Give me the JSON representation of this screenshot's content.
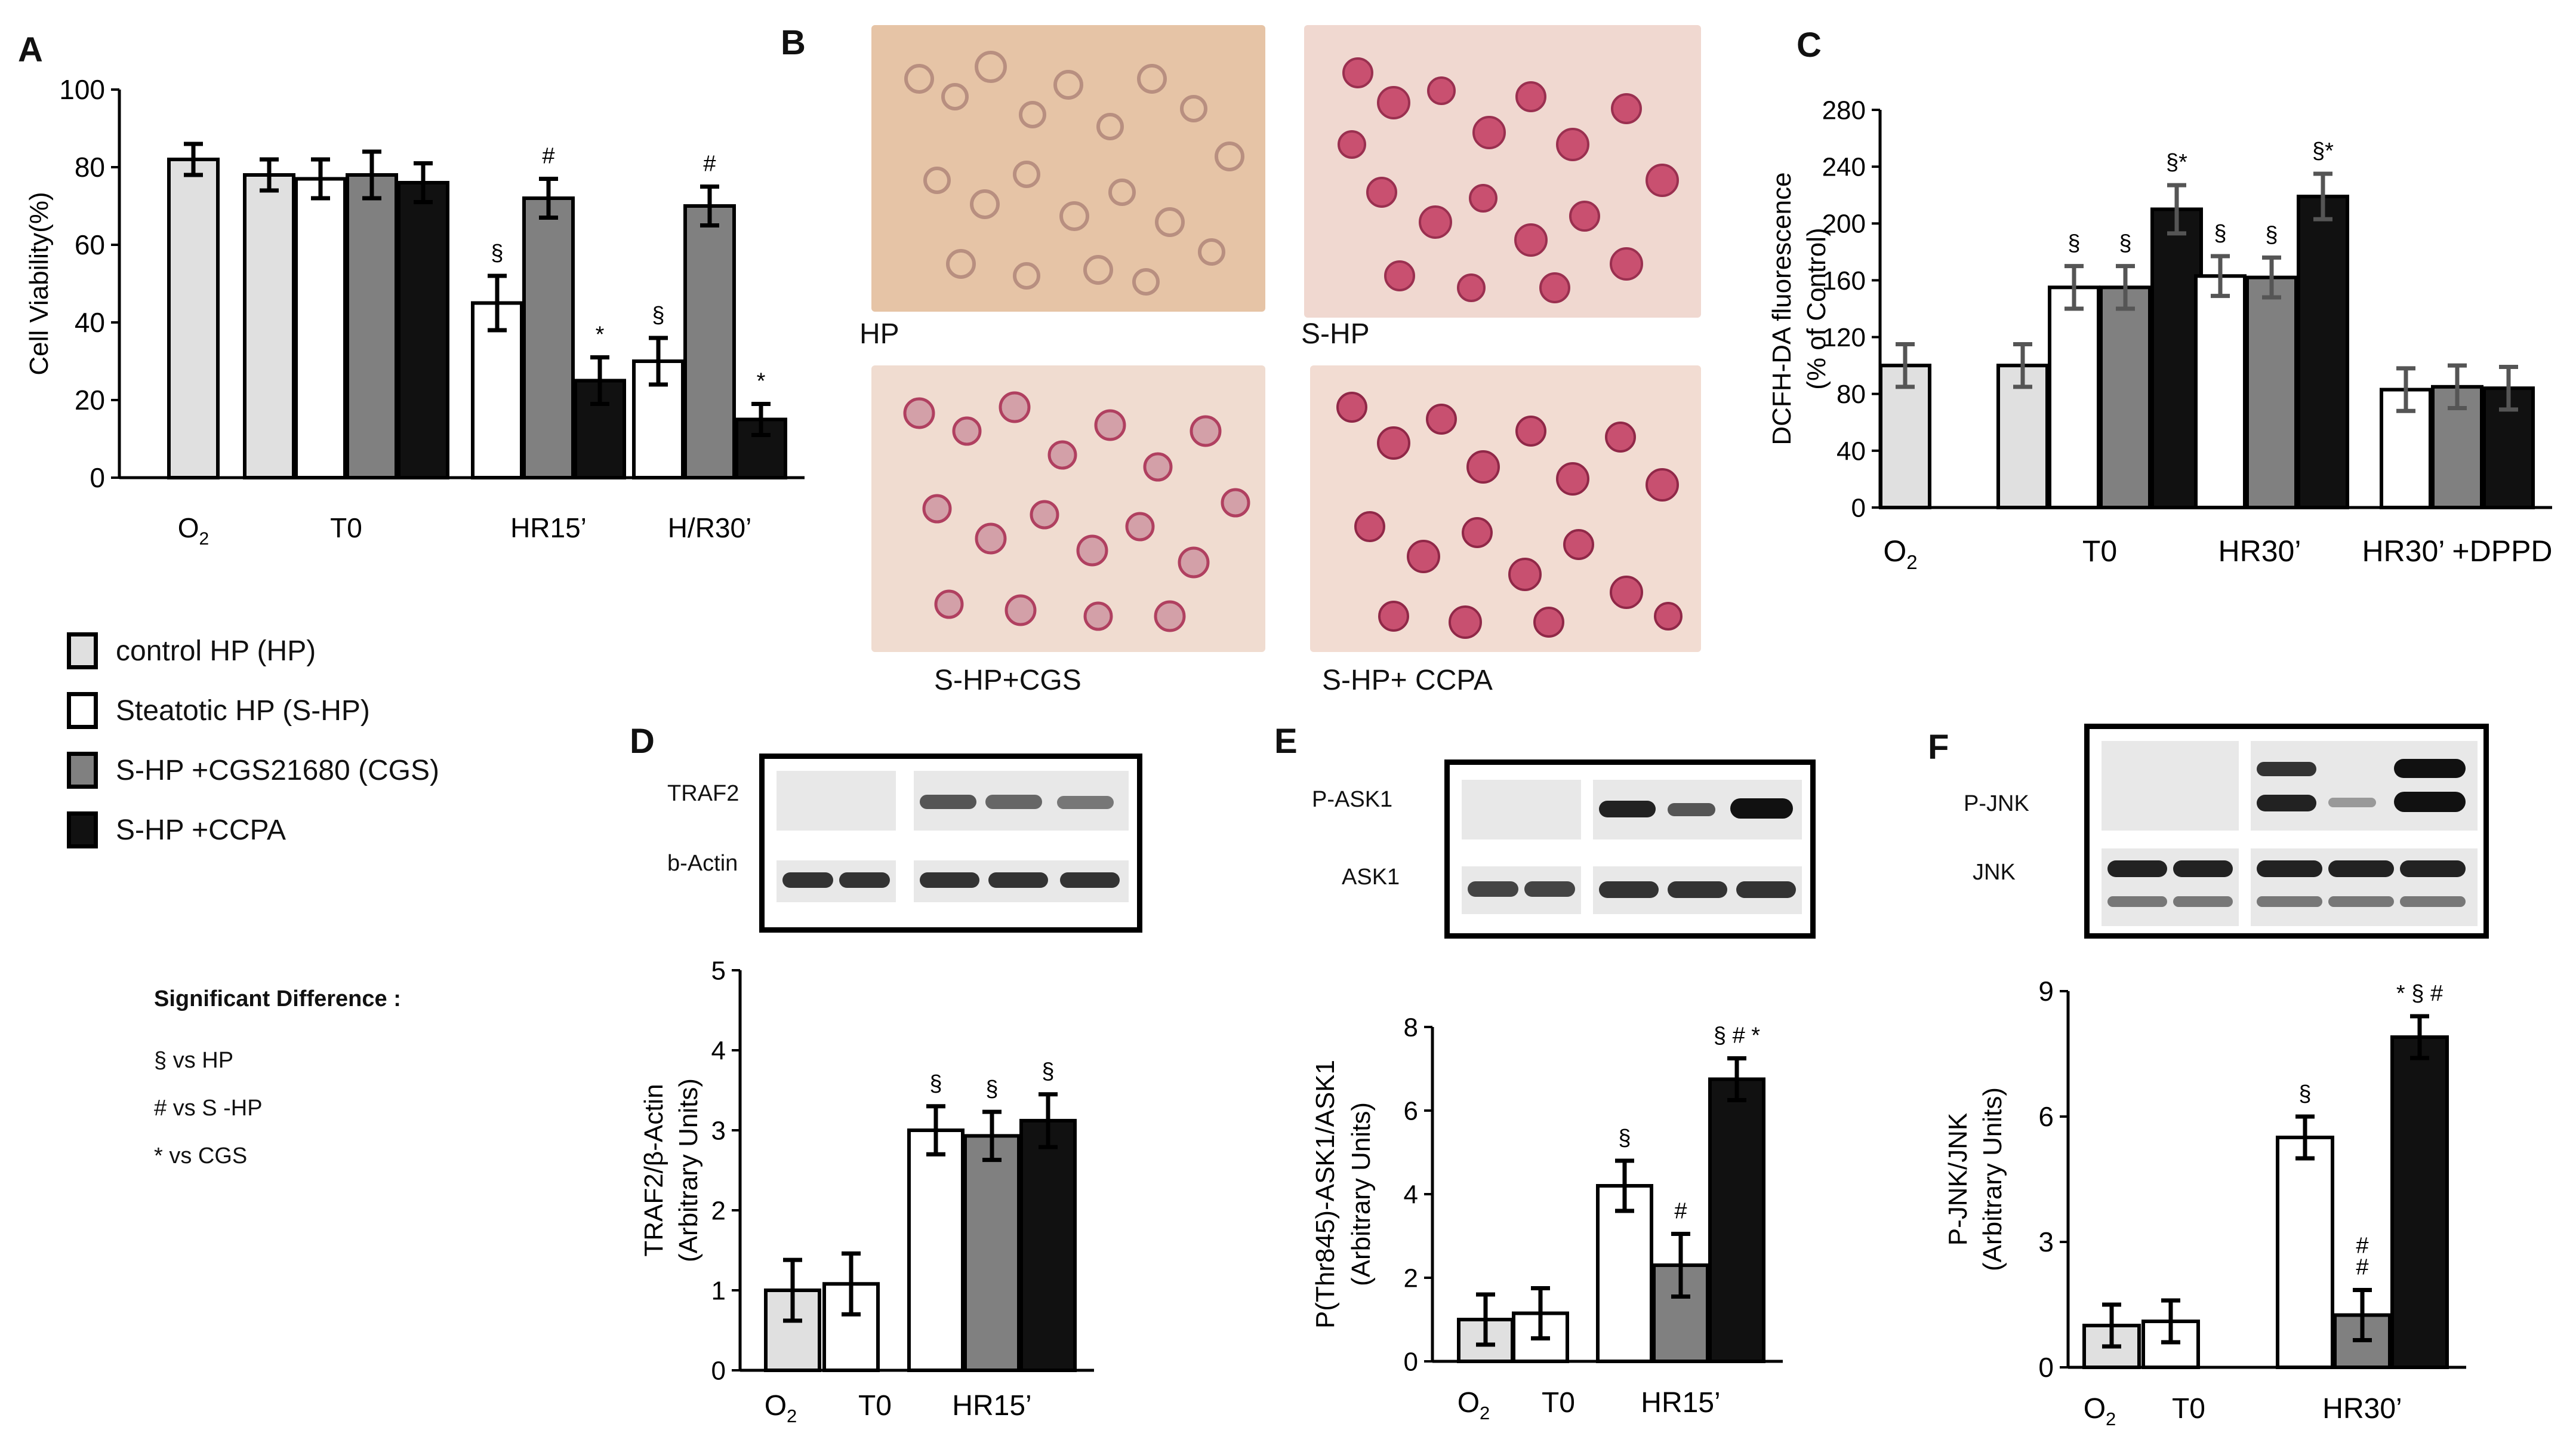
{
  "colors": {
    "ctrl": "#e0e0e0",
    "steatotic": "#ffffff",
    "cgs": "#808080",
    "ccpa": "#111111"
  },
  "panels": {
    "a": "A",
    "b": "B",
    "c": "C",
    "d": "D",
    "e": "E",
    "f": "F"
  },
  "legend": {
    "items": [
      {
        "label": "control HP (HP)",
        "color": "#e0e0e0"
      },
      {
        "label": "Steatotic HP (S-HP)",
        "color": "#ffffff"
      },
      {
        "label": "S-HP +CGS21680 (CGS)",
        "color": "#808080"
      },
      {
        "label": "S-HP +CCPA",
        "color": "#111111"
      }
    ],
    "sig_title": "Significant Difference :",
    "sig_items": [
      "§ vs HP",
      "# vs S -HP",
      "* vs CGS"
    ]
  },
  "photos": {
    "hp": "HP",
    "shp": "S-HP",
    "shp_cgs": "S-HP+CGS",
    "shp_ccpa": "S-HP+ CCPA"
  },
  "blots": {
    "d": {
      "top": "TRAF2",
      "bottom": "b-Actin"
    },
    "e": {
      "top": "P-ASK1",
      "bottom": "ASK1"
    },
    "f": {
      "top": "P-JNK",
      "bottom": "JNK"
    }
  },
  "chart_data": [
    {
      "panel": "A",
      "type": "bar",
      "ylabel": "Cell Viability(%)",
      "ylim": [
        0,
        100
      ],
      "yticks": [
        0,
        20,
        40,
        60,
        80,
        100
      ],
      "groups": [
        {
          "label": "O2",
          "bars": [
            {
              "series": "ctrl",
              "value": 82,
              "err": 4,
              "mark": ""
            }
          ]
        },
        {
          "label": "T0",
          "bars": [
            {
              "series": "ctrl",
              "value": 78,
              "err": 4,
              "mark": ""
            },
            {
              "series": "steatotic",
              "value": 77,
              "err": 5,
              "mark": ""
            },
            {
              "series": "cgs",
              "value": 78,
              "err": 6,
              "mark": ""
            },
            {
              "series": "ccpa",
              "value": 76,
              "err": 5,
              "mark": ""
            }
          ]
        },
        {
          "label": "HR15’",
          "bars": [
            {
              "series": "steatotic",
              "value": 45,
              "err": 7,
              "mark": "§"
            },
            {
              "series": "cgs",
              "value": 72,
              "err": 5,
              "mark": "#"
            },
            {
              "series": "ccpa",
              "value": 25,
              "err": 6,
              "mark": "*"
            }
          ]
        },
        {
          "label": "H/R30’",
          "bars": [
            {
              "series": "steatotic",
              "value": 30,
              "err": 6,
              "mark": "§"
            },
            {
              "series": "cgs",
              "value": 70,
              "err": 5,
              "mark": "#"
            },
            {
              "series": "ccpa",
              "value": 15,
              "err": 4,
              "mark": "*"
            }
          ]
        }
      ]
    },
    {
      "panel": "C",
      "type": "bar",
      "ylabel": "DCFH-DA fluorescence",
      "ylabel2": "(% of Control)",
      "ylim": [
        0,
        280
      ],
      "yticks": [
        0,
        40,
        80,
        120,
        160,
        200,
        240,
        280
      ],
      "groups": [
        {
          "label": "O2",
          "bars": [
            {
              "series": "ctrl",
              "value": 100,
              "err": 15,
              "mark": ""
            }
          ]
        },
        {
          "label": "T0",
          "bars": [
            {
              "series": "ctrl",
              "value": 100,
              "err": 15,
              "mark": ""
            },
            {
              "series": "steatotic",
              "value": 155,
              "err": 15,
              "mark": "§"
            },
            {
              "series": "cgs",
              "value": 155,
              "err": 15,
              "mark": "§"
            },
            {
              "series": "ccpa",
              "value": 210,
              "err": 17,
              "mark": "§*"
            }
          ]
        },
        {
          "label": "HR30’",
          "bars": [
            {
              "series": "steatotic",
              "value": 163,
              "err": 14,
              "mark": "§"
            },
            {
              "series": "cgs",
              "value": 162,
              "err": 14,
              "mark": "§"
            },
            {
              "series": "ccpa",
              "value": 219,
              "err": 16,
              "mark": "§*"
            }
          ]
        },
        {
          "label": "HR30’ +DPPD",
          "bars": [
            {
              "series": "steatotic",
              "value": 83,
              "err": 15,
              "mark": ""
            },
            {
              "series": "cgs",
              "value": 85,
              "err": 15,
              "mark": ""
            },
            {
              "series": "ccpa",
              "value": 84,
              "err": 15,
              "mark": ""
            }
          ]
        }
      ]
    },
    {
      "panel": "D",
      "type": "bar",
      "ylabel": "TRAF2/β-Actin",
      "ylabel2": "(Arbitrary Units)",
      "ylim": [
        0,
        5
      ],
      "yticks": [
        0,
        1,
        2,
        3,
        4,
        5
      ],
      "groups": [
        {
          "label": "O2",
          "bars": [
            {
              "series": "ctrl",
              "value": 1.0,
              "err": 0.38,
              "mark": ""
            }
          ]
        },
        {
          "label": "T0",
          "bars": [
            {
              "series": "steatotic",
              "value": 1.08,
              "err": 0.38,
              "mark": ""
            }
          ]
        },
        {
          "label": "HR15’",
          "bars": [
            {
              "series": "steatotic",
              "value": 3.0,
              "err": 0.3,
              "mark": "§"
            },
            {
              "series": "cgs",
              "value": 2.93,
              "err": 0.3,
              "mark": "§"
            },
            {
              "series": "ccpa",
              "value": 3.12,
              "err": 0.33,
              "mark": "§"
            }
          ]
        }
      ]
    },
    {
      "panel": "E",
      "type": "bar",
      "ylabel": "P(Thr845)-ASK1/ASK1",
      "ylabel2": "(Arbitrary Units)",
      "ylim": [
        0,
        8
      ],
      "yticks": [
        0,
        2,
        4,
        6,
        8
      ],
      "groups": [
        {
          "label": "O2",
          "bars": [
            {
              "series": "ctrl",
              "value": 1.0,
              "err": 0.6,
              "mark": ""
            }
          ]
        },
        {
          "label": "T0",
          "bars": [
            {
              "series": "steatotic",
              "value": 1.15,
              "err": 0.6,
              "mark": ""
            }
          ]
        },
        {
          "label": "HR15’",
          "bars": [
            {
              "series": "steatotic",
              "value": 4.2,
              "err": 0.6,
              "mark": "§"
            },
            {
              "series": "cgs",
              "value": 2.3,
              "err": 0.75,
              "mark": "#"
            },
            {
              "series": "ccpa",
              "value": 6.75,
              "err": 0.5,
              "mark": "§ # *"
            }
          ]
        }
      ]
    },
    {
      "panel": "F",
      "type": "bar",
      "ylabel": "P-JNK/JNK",
      "ylabel2": "(Arbitrary Units)",
      "ylim": [
        0,
        9
      ],
      "yticks": [
        0,
        3,
        6,
        9
      ],
      "groups": [
        {
          "label": "O2",
          "bars": [
            {
              "series": "ctrl",
              "value": 1.0,
              "err": 0.5,
              "mark": ""
            }
          ]
        },
        {
          "label": "T0",
          "bars": [
            {
              "series": "steatotic",
              "value": 1.1,
              "err": 0.5,
              "mark": ""
            }
          ]
        },
        {
          "label": "HR30’",
          "bars": [
            {
              "series": "steatotic",
              "value": 5.5,
              "err": 0.5,
              "mark": "§"
            },
            {
              "series": "cgs",
              "value": 1.25,
              "err": 0.6,
              "mark": "# #"
            },
            {
              "series": "ccpa",
              "value": 7.9,
              "err": 0.5,
              "mark": "* § #"
            }
          ]
        }
      ]
    }
  ]
}
